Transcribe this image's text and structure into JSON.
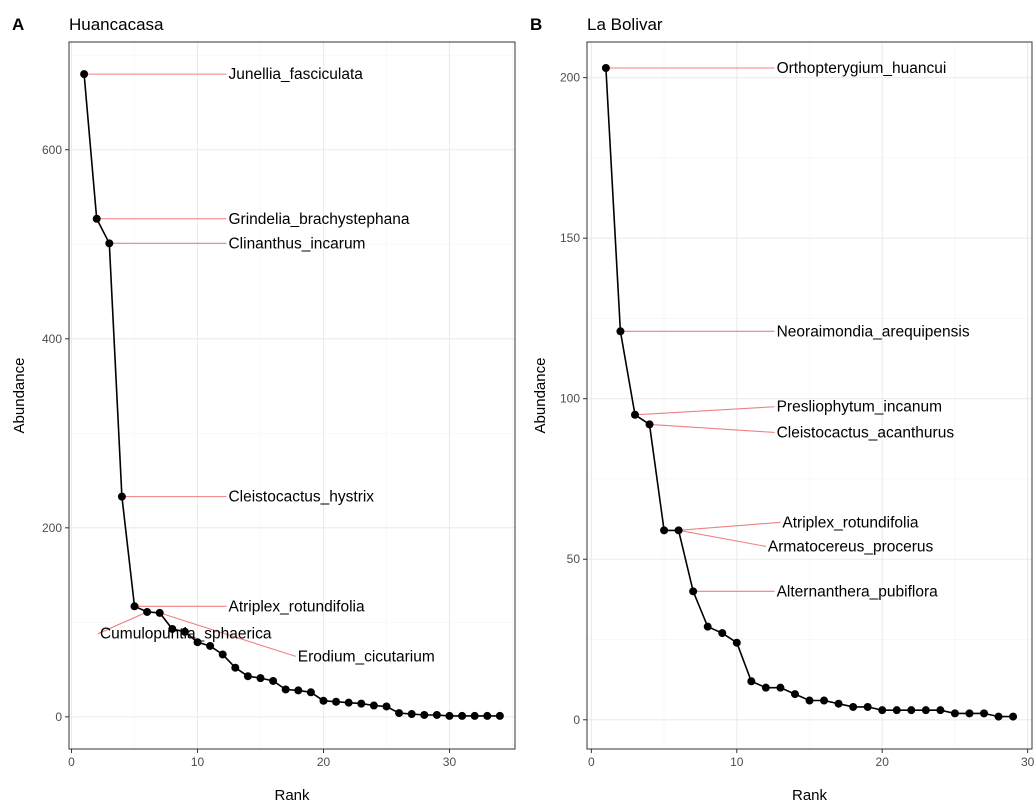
{
  "chart_data": [
    {
      "type": "line",
      "panel": "A",
      "title": "Huancacasa",
      "xlabel": "Rank",
      "ylabel": "Abundance",
      "xlim": [
        -0.2,
        35.2
      ],
      "ylim": [
        -34,
        714
      ],
      "xticks": [
        0,
        10,
        20,
        30
      ],
      "yticks": [
        0,
        200,
        400,
        600
      ],
      "grid": true,
      "points": [
        {
          "x": 1,
          "y": 680
        },
        {
          "x": 2,
          "y": 527
        },
        {
          "x": 3,
          "y": 501
        },
        {
          "x": 4,
          "y": 233
        },
        {
          "x": 5,
          "y": 117
        },
        {
          "x": 6,
          "y": 111
        },
        {
          "x": 7,
          "y": 110
        },
        {
          "x": 8,
          "y": 93
        },
        {
          "x": 9,
          "y": 90
        },
        {
          "x": 10,
          "y": 79
        },
        {
          "x": 11,
          "y": 75
        },
        {
          "x": 12,
          "y": 66
        },
        {
          "x": 13,
          "y": 52
        },
        {
          "x": 14,
          "y": 43
        },
        {
          "x": 15,
          "y": 41
        },
        {
          "x": 16,
          "y": 38
        },
        {
          "x": 17,
          "y": 29
        },
        {
          "x": 18,
          "y": 28
        },
        {
          "x": 19,
          "y": 26
        },
        {
          "x": 20,
          "y": 17
        },
        {
          "x": 21,
          "y": 16
        },
        {
          "x": 22,
          "y": 15
        },
        {
          "x": 23,
          "y": 14
        },
        {
          "x": 24,
          "y": 12
        },
        {
          "x": 25,
          "y": 11
        },
        {
          "x": 26,
          "y": 4
        },
        {
          "x": 27,
          "y": 3
        },
        {
          "x": 28,
          "y": 2
        },
        {
          "x": 29,
          "y": 2
        },
        {
          "x": 30,
          "y": 1
        },
        {
          "x": 31,
          "y": 1
        },
        {
          "x": 32,
          "y": 1
        },
        {
          "x": 33,
          "y": 1
        },
        {
          "x": 34,
          "y": 1
        }
      ],
      "labels": [
        {
          "rank": 1,
          "text": "Junellia_fasciculata",
          "lx": 12.3,
          "ly": 680,
          "anchor": "start"
        },
        {
          "rank": 2,
          "text": "Grindelia_brachystephana",
          "lx": 12.3,
          "ly": 527,
          "anchor": "start"
        },
        {
          "rank": 3,
          "text": "Clinanthus_incarum",
          "lx": 12.3,
          "ly": 501,
          "anchor": "start"
        },
        {
          "rank": 4,
          "text": "Cleistocactus_hystrix",
          "lx": 12.3,
          "ly": 233,
          "anchor": "start"
        },
        {
          "rank": 5,
          "text": "Atriplex_rotundifolia",
          "lx": 12.3,
          "ly": 117,
          "anchor": "start"
        },
        {
          "rank": 6,
          "text": "Cumulopuntia_sphaerica",
          "lx": 2.1,
          "ly": 88,
          "anchor": "start"
        },
        {
          "rank": 7,
          "text": "Erodium_cicutarium",
          "lx": 17.8,
          "ly": 64,
          "anchor": "start"
        }
      ]
    },
    {
      "type": "line",
      "panel": "B",
      "title": "La Bolivar",
      "xlabel": "Rank",
      "ylabel": "Abundance",
      "xlim": [
        -0.3,
        30.3
      ],
      "ylim": [
        -9.1,
        211.1
      ],
      "xticks": [
        0,
        10,
        20,
        30
      ],
      "yticks": [
        0,
        50,
        100,
        150,
        200
      ],
      "grid": true,
      "points": [
        {
          "x": 1,
          "y": 203
        },
        {
          "x": 2,
          "y": 121
        },
        {
          "x": 3,
          "y": 95
        },
        {
          "x": 4,
          "y": 92
        },
        {
          "x": 5,
          "y": 59
        },
        {
          "x": 6,
          "y": 59
        },
        {
          "x": 7,
          "y": 40
        },
        {
          "x": 8,
          "y": 29
        },
        {
          "x": 9,
          "y": 27
        },
        {
          "x": 10,
          "y": 24
        },
        {
          "x": 11,
          "y": 12
        },
        {
          "x": 12,
          "y": 10
        },
        {
          "x": 13,
          "y": 10
        },
        {
          "x": 14,
          "y": 8
        },
        {
          "x": 15,
          "y": 6
        },
        {
          "x": 16,
          "y": 6
        },
        {
          "x": 17,
          "y": 5
        },
        {
          "x": 18,
          "y": 4
        },
        {
          "x": 19,
          "y": 4
        },
        {
          "x": 20,
          "y": 3
        },
        {
          "x": 21,
          "y": 3
        },
        {
          "x": 22,
          "y": 3
        },
        {
          "x": 23,
          "y": 3
        },
        {
          "x": 24,
          "y": 3
        },
        {
          "x": 25,
          "y": 2
        },
        {
          "x": 26,
          "y": 2
        },
        {
          "x": 27,
          "y": 2
        },
        {
          "x": 28,
          "y": 1
        },
        {
          "x": 29,
          "y": 1
        }
      ],
      "labels": [
        {
          "rank": 1,
          "text": "Orthopterygium_huancui",
          "lx": 12.6,
          "ly": 203,
          "anchor": "start"
        },
        {
          "rank": 2,
          "text": "Neoraimondia_arequipensis",
          "lx": 12.6,
          "ly": 121,
          "anchor": "start"
        },
        {
          "rank": 3,
          "text": "Presliophytum_incanum",
          "lx": 12.6,
          "ly": 97.5,
          "anchor": "start"
        },
        {
          "rank": 4,
          "text": "Cleistocactus_acanthurus",
          "lx": 12.6,
          "ly": 89.5,
          "anchor": "start"
        },
        {
          "rank": 6,
          "text": "Atriplex_rotundifolia",
          "lx": 13.0,
          "ly": 61.5,
          "anchor": "start"
        },
        {
          "rank": 6,
          "text": "Armatocereus_procerus",
          "lx": 12.0,
          "ly": 54,
          "anchor": "start"
        },
        {
          "rank": 7,
          "text": "Alternanthera_pubiflora",
          "lx": 12.6,
          "ly": 40,
          "anchor": "start"
        }
      ]
    }
  ]
}
